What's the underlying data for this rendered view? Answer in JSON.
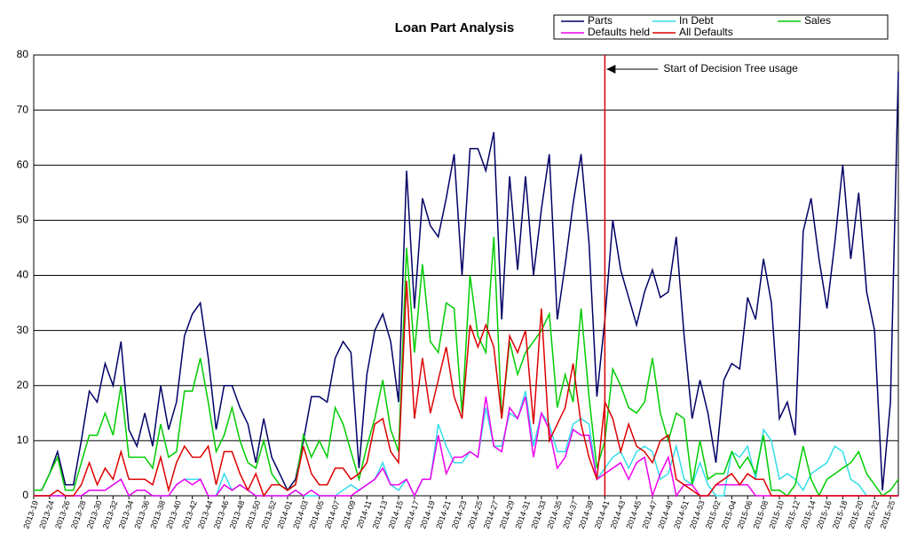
{
  "chart_data": {
    "type": "line",
    "title": "Loan Part Analysis",
    "categories": [
      "2013-19",
      null,
      "2013-24",
      null,
      "2013-26",
      null,
      "2013-28",
      null,
      "2013-30",
      null,
      "2013-32",
      null,
      "2013-34",
      null,
      "2013-36",
      null,
      "2013-38",
      null,
      "2013-40",
      null,
      "2013-42",
      null,
      "2013-44",
      null,
      "2013-46",
      null,
      "2013-48",
      null,
      "2013-50",
      null,
      "2013-52",
      null,
      "2014-01",
      null,
      "2014-03",
      null,
      "2014-05",
      null,
      "2014-07",
      null,
      "2014-09",
      null,
      "2014-11",
      null,
      "2014-13",
      null,
      "2014-15",
      null,
      "2014-17",
      null,
      "2014-19",
      null,
      "2014-21",
      null,
      "2014-23",
      null,
      "2014-25",
      null,
      "2014-27",
      null,
      "2014-29",
      null,
      "2014-31",
      null,
      "2014-33",
      null,
      "2014-35",
      null,
      "2014-37",
      null,
      "2014-39",
      null,
      "2014-41",
      null,
      "2014-43",
      null,
      "2014-45",
      null,
      "2014-47",
      null,
      "2014-49",
      null,
      "2014-51",
      null,
      "2014-53",
      null,
      "2015-02",
      null,
      "2015-04",
      null,
      "2015-06",
      null,
      "2015-08",
      null,
      "2015-10",
      null,
      "2015-12",
      null,
      "2015-14",
      null,
      "2015-16",
      null,
      "2015-18",
      null,
      "2015-20",
      null,
      "2015-22",
      null,
      "2015-25",
      null
    ],
    "series": [
      {
        "name": "Parts",
        "color": "#000066",
        "values": [
          1,
          1,
          4,
          8,
          2,
          2,
          10,
          19,
          17,
          24,
          20,
          28,
          12,
          9,
          15,
          9,
          20,
          12,
          17,
          29,
          33,
          35,
          25,
          12,
          20,
          20,
          16,
          13,
          6,
          14,
          7,
          4,
          1,
          3,
          10,
          18,
          18,
          17,
          25,
          28,
          26,
          5,
          22,
          30,
          33,
          28,
          17,
          59,
          34,
          54,
          49,
          47,
          54,
          62,
          40,
          63,
          63,
          59,
          66,
          32,
          58,
          41,
          58,
          40,
          52,
          62,
          32,
          42,
          53,
          62,
          46,
          18,
          32,
          50,
          41,
          36,
          31,
          37,
          41,
          36,
          37,
          47,
          29,
          14,
          21,
          15,
          6,
          21,
          24,
          23,
          36,
          32,
          43,
          35,
          14,
          17,
          11,
          48,
          54,
          43,
          34,
          46,
          60,
          43,
          55,
          37,
          30,
          1,
          17,
          77
        ]
      },
      {
        "name": "In Debt",
        "color": "#33dde8",
        "values": [
          0,
          0,
          0,
          0,
          0,
          0,
          0,
          1,
          1,
          1,
          2,
          3,
          0,
          1,
          1,
          0,
          0,
          0,
          2,
          3,
          3,
          3,
          0,
          0,
          4,
          1,
          2,
          1,
          0,
          0,
          0,
          0,
          0,
          1,
          0,
          0,
          0,
          0,
          0,
          1,
          2,
          1,
          2,
          3,
          6,
          2,
          1,
          3,
          0,
          3,
          3,
          13,
          9,
          6,
          6,
          8,
          7,
          16,
          9,
          9,
          15,
          14,
          19,
          9,
          15,
          13,
          8,
          8,
          13,
          14,
          13,
          3,
          5,
          7,
          8,
          5,
          8,
          9,
          8,
          3,
          4,
          9,
          3,
          2,
          6,
          2,
          0,
          0,
          8,
          7,
          9,
          3,
          12,
          10,
          3,
          4,
          3,
          1,
          4,
          5,
          6,
          9,
          8,
          3,
          2,
          0,
          0,
          0,
          0,
          0
        ]
      },
      {
        "name": "Sales",
        "color": "#00cc00",
        "values": [
          1,
          1,
          4,
          7,
          1,
          1,
          6,
          11,
          11,
          15,
          11,
          20,
          7,
          7,
          7,
          5,
          13,
          7,
          8,
          19,
          19,
          25,
          17,
          8,
          11,
          16,
          10,
          6,
          5,
          10,
          4,
          2,
          1,
          2,
          11,
          7,
          10,
          7,
          16,
          13,
          8,
          3,
          9,
          14,
          21,
          12,
          8,
          45,
          26,
          42,
          28,
          26,
          35,
          34,
          15,
          40,
          29,
          26,
          47,
          14,
          28,
          22,
          26,
          28,
          30,
          33,
          16,
          22,
          17,
          34,
          18,
          5,
          10,
          23,
          20,
          16,
          15,
          17,
          25,
          15,
          10,
          15,
          14,
          2,
          10,
          3,
          4,
          4,
          8,
          5,
          7,
          4,
          11,
          1,
          1,
          0,
          2,
          9,
          3,
          0,
          3,
          4,
          5,
          6,
          8,
          4,
          2,
          0,
          1,
          3
        ]
      },
      {
        "name": "Defaults held",
        "color": "#ee00ee",
        "values": [
          0,
          0,
          0,
          0,
          0,
          0,
          0,
          1,
          1,
          1,
          2,
          3,
          0,
          1,
          1,
          0,
          0,
          0,
          2,
          3,
          2,
          3,
          0,
          0,
          2,
          1,
          2,
          1,
          0,
          0,
          0,
          0,
          0,
          1,
          0,
          1,
          0,
          0,
          0,
          0,
          0,
          1,
          2,
          3,
          5,
          2,
          2,
          3,
          0,
          3,
          3,
          11,
          4,
          7,
          7,
          8,
          7,
          18,
          9,
          8,
          16,
          14,
          18,
          7,
          15,
          12,
          5,
          7,
          12,
          11,
          11,
          3,
          4,
          5,
          6,
          3,
          6,
          7,
          0,
          4,
          7,
          0,
          2,
          2,
          0,
          0,
          2,
          2,
          2,
          2,
          2,
          0,
          0,
          0,
          0,
          0,
          0,
          0,
          0,
          0,
          0,
          0,
          0,
          0,
          0,
          0,
          0,
          0,
          0,
          0
        ]
      },
      {
        "name": "All Defaults",
        "color": "#dd0000",
        "values": [
          0,
          0,
          0,
          1,
          0,
          0,
          2,
          6,
          2,
          5,
          3,
          8,
          3,
          3,
          3,
          2,
          7,
          1,
          6,
          9,
          7,
          7,
          9,
          2,
          8,
          8,
          4,
          1,
          4,
          0,
          2,
          2,
          1,
          2,
          9,
          4,
          2,
          2,
          5,
          5,
          3,
          4,
          6,
          13,
          14,
          8,
          6,
          39,
          14,
          25,
          15,
          21,
          27,
          18,
          14,
          31,
          27,
          31,
          27,
          14,
          29,
          26,
          30,
          13,
          34,
          10,
          13,
          16,
          24,
          13,
          7,
          3,
          17,
          14,
          8,
          13,
          9,
          8,
          6,
          10,
          11,
          3,
          2,
          1,
          0,
          0,
          2,
          3,
          4,
          2,
          4,
          3,
          3,
          0,
          0,
          0,
          0,
          0,
          0,
          0,
          0,
          0,
          0,
          0,
          0,
          0,
          0,
          0,
          0,
          0
        ]
      }
    ],
    "ylim": [
      0,
      80
    ],
    "yticks": [
      0,
      10,
      20,
      30,
      40,
      50,
      60,
      70,
      80
    ],
    "grid": true,
    "marker": {
      "label": "Start of Decision Tree usage",
      "index": 72,
      "color": "#dd0000"
    }
  }
}
